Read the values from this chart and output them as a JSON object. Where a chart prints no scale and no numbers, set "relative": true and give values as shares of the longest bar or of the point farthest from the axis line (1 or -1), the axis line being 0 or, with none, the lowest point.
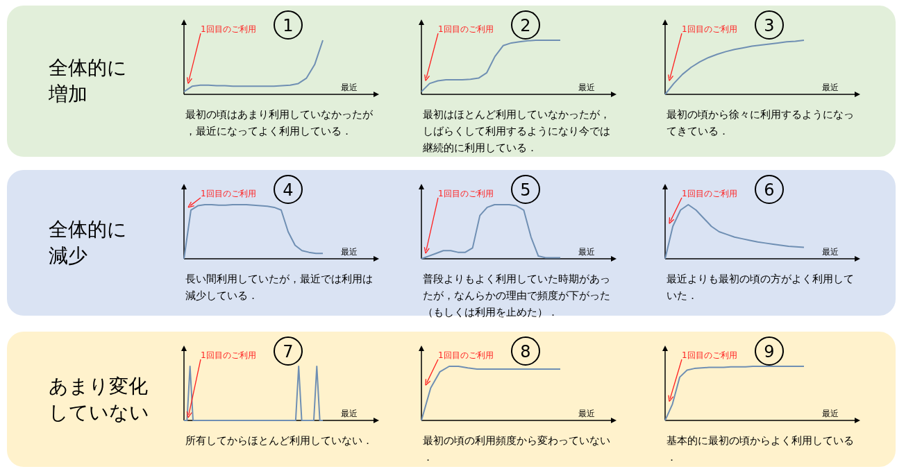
{
  "chart_data": [
    {
      "type": "other",
      "title": "全体的に",
      "subtitle": "増加"
    },
    {
      "type": "line",
      "relative": true,
      "title": "1",
      "xlabel": "最近",
      "categories": [
        null,
        null,
        null,
        null,
        null,
        null,
        null,
        null,
        null,
        null,
        null,
        null,
        null,
        null,
        null,
        null,
        null,
        null
      ],
      "series": [
        {
          "color": "#6f8fb3",
          "values": [
            0.05,
            0.15,
            0.17,
            0.17,
            0.16,
            0.16,
            0.15,
            0.15,
            0.15,
            0.15,
            0.15,
            0.15,
            0.16,
            0.17,
            0.2,
            0.3,
            0.55,
            1
          ]
        }
      ],
      "annotations": [
        "1回目のご利用",
        "最初の頃はあまり利用していなかったが，最近になってよく利用している．"
      ]
    },
    {
      "type": "line",
      "relative": true,
      "title": "2",
      "xlabel": "最近",
      "categories": [
        null,
        null,
        null,
        null,
        null,
        null,
        null,
        null,
        null,
        null,
        null,
        null,
        null,
        null,
        null,
        null,
        null,
        null
      ],
      "series": [
        {
          "color": "#6f8fb3",
          "values": [
            0.05,
            0.2,
            0.25,
            0.27,
            0.27,
            0.27,
            0.28,
            0.3,
            0.4,
            0.7,
            0.9,
            0.95,
            0.97,
            0.99,
            1,
            1,
            1,
            1
          ]
        }
      ],
      "annotations": [
        "1回目のご利用",
        "最初はほとんど利用していなかったが，しばらくして利用するようになり今では継続的に利用している．"
      ]
    },
    {
      "type": "line",
      "relative": true,
      "title": "3",
      "xlabel": "最近",
      "categories": [
        null,
        null,
        null,
        null,
        null,
        null,
        null,
        null,
        null,
        null,
        null,
        null,
        null,
        null,
        null,
        null,
        null
      ],
      "series": [
        {
          "color": "#6f8fb3",
          "values": [
            0,
            0.2,
            0.37,
            0.5,
            0.6,
            0.68,
            0.74,
            0.79,
            0.83,
            0.86,
            0.89,
            0.91,
            0.93,
            0.95,
            0.97,
            0.98,
            1
          ]
        }
      ],
      "annotations": [
        "1回目のご利用",
        "最初の頃から徐々に利用するようになってきている．"
      ]
    },
    {
      "type": "other",
      "title": "全体的に",
      "subtitle": "減少"
    },
    {
      "type": "line",
      "relative": true,
      "title": "4",
      "xlabel": "最近",
      "categories": [
        null,
        null,
        null,
        null,
        null,
        null,
        null,
        null,
        null,
        null,
        null,
        null,
        null,
        null,
        null,
        null,
        null,
        null,
        null,
        null,
        null
      ],
      "series": [
        {
          "color": "#6f8fb3",
          "values": [
            0,
            0.9,
            0.98,
            1,
            1,
            0.99,
            0.99,
            1,
            1,
            1,
            0.99,
            0.98,
            0.97,
            0.95,
            0.9,
            0.5,
            0.25,
            0.15,
            0.12,
            0.1,
            0.1
          ]
        }
      ],
      "annotations": [
        "1回目のご利用",
        "長い間利用していたが，最近では利用は減少している．"
      ]
    },
    {
      "type": "line",
      "relative": true,
      "title": "5",
      "xlabel": "最近",
      "categories": [
        null,
        null,
        null,
        null,
        null,
        null,
        null,
        null,
        null,
        null,
        null,
        null,
        null,
        null,
        null,
        null,
        null,
        null,
        null,
        null
      ],
      "series": [
        {
          "color": "#6f8fb3",
          "values": [
            0,
            0.05,
            0.1,
            0.15,
            0.15,
            0.12,
            0.12,
            0.2,
            0.8,
            0.95,
            1,
            1,
            1,
            0.98,
            0.9,
            0.4,
            0.05,
            0.02,
            0.02,
            0.02
          ]
        }
      ],
      "annotations": [
        "1回目のご利用",
        "普段よりもよく利用していた時期があったが，なんらかの理由で頻度が下がった（もしくは利用を止めた）．"
      ]
    },
    {
      "type": "line",
      "relative": true,
      "title": "6",
      "xlabel": "最近",
      "categories": [
        null,
        null,
        null,
        null,
        null,
        null,
        null,
        null,
        null,
        null,
        null,
        null,
        null,
        null,
        null,
        null,
        null,
        null,
        null
      ],
      "series": [
        {
          "color": "#6f8fb3",
          "values": [
            0,
            0.6,
            0.9,
            1,
            0.9,
            0.75,
            0.6,
            0.5,
            0.45,
            0.4,
            0.37,
            0.34,
            0.31,
            0.29,
            0.27,
            0.25,
            0.23,
            0.22,
            0.21
          ]
        }
      ],
      "annotations": [
        "1回目のご利用",
        "最近よりも最初の頃の方がよく利用していた．"
      ]
    },
    {
      "type": "other",
      "title": "あまり変化",
      "subtitle": "していない"
    },
    {
      "type": "line",
      "relative": true,
      "title": "7",
      "xlabel": "最近",
      "categories": [
        null,
        null,
        null,
        null,
        null,
        null,
        null,
        null,
        null,
        null,
        null,
        null,
        null,
        null,
        null,
        null,
        null,
        null,
        null,
        null,
        null,
        null,
        null,
        null,
        null,
        null,
        null,
        null,
        null,
        null,
        null,
        null,
        null,
        null,
        null,
        null,
        null,
        null,
        null,
        null,
        null,
        null,
        null,
        null,
        null,
        null,
        null
      ],
      "series": [
        {
          "color": "#6f8fb3",
          "values": [
            0,
            0,
            1,
            0,
            0,
            0,
            0,
            0,
            0,
            0,
            0,
            0,
            0,
            0,
            0,
            0,
            0,
            0,
            0,
            0,
            0,
            0,
            0,
            0,
            0,
            0,
            0,
            0,
            0,
            0,
            0,
            0,
            0,
            0,
            0,
            0,
            0,
            0,
            1,
            0,
            0,
            0,
            0,
            0,
            1,
            0,
            0
          ]
        }
      ],
      "annotations": [
        "1回目のご利用",
        "所有してからほとんど利用していない．"
      ]
    },
    {
      "type": "line",
      "relative": true,
      "title": "8",
      "xlabel": "最近",
      "categories": [
        null,
        null,
        null,
        null,
        null,
        null,
        null,
        null,
        null,
        null,
        null,
        null,
        null,
        null,
        null,
        null
      ],
      "series": [
        {
          "color": "#6f8fb3",
          "values": [
            0,
            0.6,
            0.9,
            1,
            1,
            0.97,
            0.95,
            0.95,
            0.95,
            0.95,
            0.95,
            0.95,
            0.95,
            0.95,
            0.95,
            0.95
          ]
        }
      ],
      "annotations": [
        "1回目のご利用",
        "最初の頃の利用頻度から変わっていない．"
      ]
    },
    {
      "type": "line",
      "relative": true,
      "title": "9",
      "xlabel": "最近",
      "categories": [
        null,
        null,
        null,
        null,
        null,
        null,
        null,
        null,
        null,
        null,
        null,
        null,
        null,
        null,
        null,
        null,
        null,
        null,
        null,
        null
      ],
      "series": [
        {
          "color": "#6f8fb3",
          "values": [
            0,
            0.3,
            0.8,
            0.93,
            0.96,
            0.97,
            0.98,
            0.98,
            0.98,
            0.99,
            0.99,
            0.99,
            1,
            1,
            1,
            1,
            1,
            1,
            1,
            1
          ]
        }
      ],
      "annotations": [
        "1回目のご利用",
        "基本的に最初の頃からよく利用している．"
      ]
    }
  ]
}
